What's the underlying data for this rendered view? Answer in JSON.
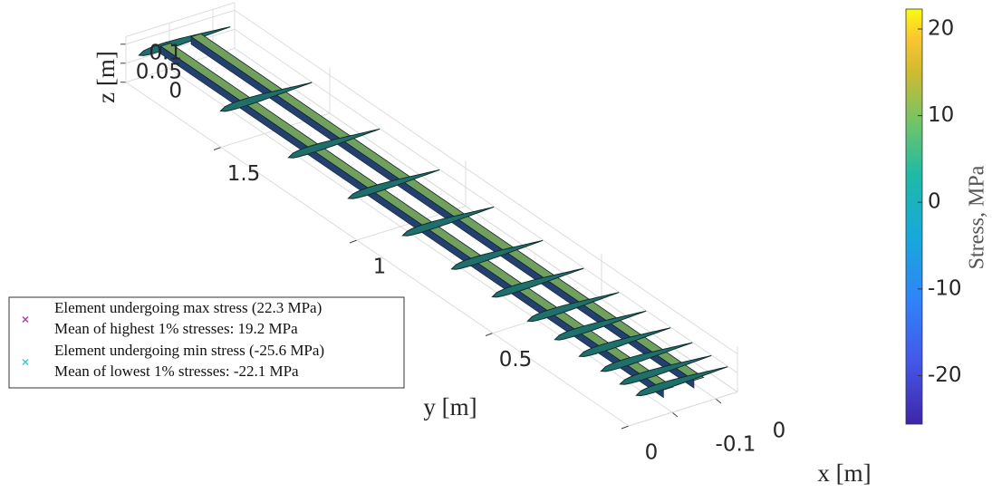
{
  "chart_data": {
    "type": "surface3d",
    "xlabel": "x [m]",
    "ylabel": "y [m]",
    "zlabel": "z [m]",
    "xlim": [
      -0.2,
      0.05
    ],
    "xticks": [
      -0.1,
      0
    ],
    "ylim": [
      0,
      1.85
    ],
    "yticks": [
      0,
      0.5,
      1,
      1.5
    ],
    "zlim": [
      0,
      0.12
    ],
    "zticks": [
      0,
      0.05,
      0.1
    ],
    "grid": true,
    "colorbar": {
      "label": "Stress, MPa",
      "clim": [
        -25.6,
        22.3
      ],
      "ticks": [
        -20,
        -10,
        0,
        10,
        20
      ],
      "colormap": "parula"
    },
    "legend": {
      "location": "west",
      "entries": [
        {
          "lines": [
            "Element undergoing max stress (22.3 MPa)",
            "Mean of highest 1% stresses: 19.2 MPa"
          ],
          "color": "#c0399e",
          "marker": "x"
        },
        {
          "lines": [
            "Element undergoing min stress (-25.6 MPa)",
            "Mean of lowest 1% stresses: -22.1 MPa"
          ],
          "color": "#3ec7d6",
          "marker": "x"
        }
      ]
    }
  }
}
